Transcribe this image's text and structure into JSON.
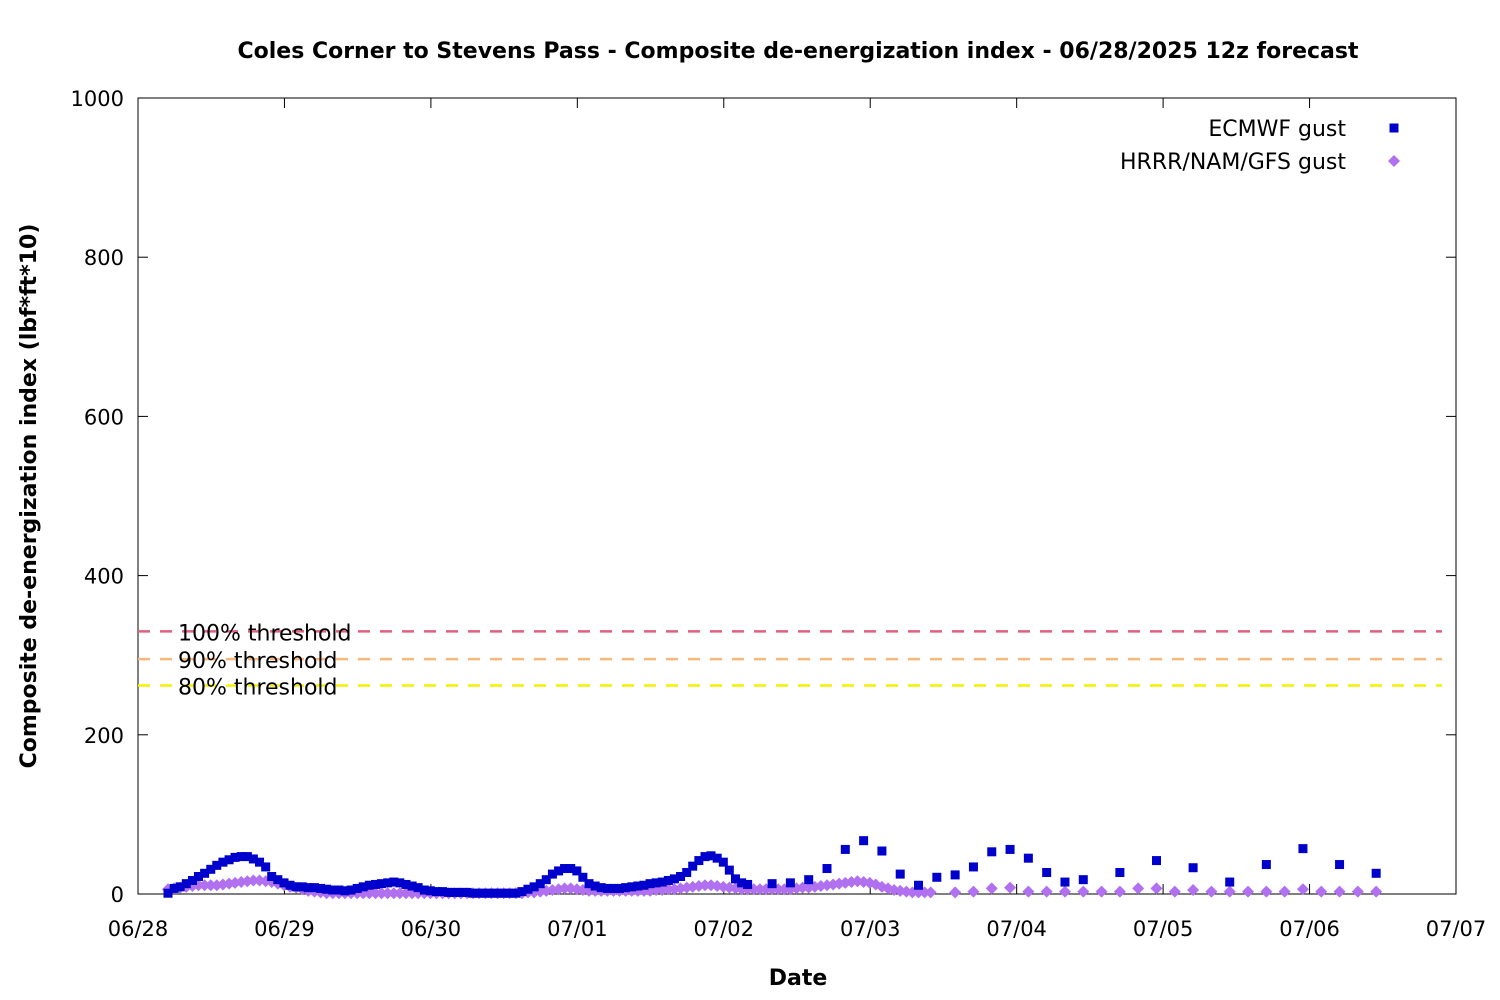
{
  "chart_data": {
    "type": "scatter",
    "title": "Coles Corner to Stevens Pass - Composite de-energization index - 06/28/2025 12z forecast",
    "xlabel": "Date",
    "ylabel": "Composite de-energization index (lbf*ft*10)",
    "x_unit": "days since 06/28 00z",
    "xlim": [
      0,
      9
    ],
    "ylim": [
      0,
      1000
    ],
    "x_ticks": [
      {
        "x": 0,
        "label": "06/28"
      },
      {
        "x": 1,
        "label": "06/29"
      },
      {
        "x": 2,
        "label": "06/30"
      },
      {
        "x": 3,
        "label": "07/01"
      },
      {
        "x": 4,
        "label": "07/02"
      },
      {
        "x": 5,
        "label": "07/03"
      },
      {
        "x": 6,
        "label": "07/04"
      },
      {
        "x": 7,
        "label": "07/05"
      },
      {
        "x": 8,
        "label": "07/06"
      },
      {
        "x": 9,
        "label": "07/07"
      }
    ],
    "y_ticks": [
      0,
      200,
      400,
      600,
      800,
      1000
    ],
    "grid": false,
    "legend_position": "top-right",
    "thresholds": [
      {
        "name": "100% threshold",
        "value": 330,
        "color": "#e0607e"
      },
      {
        "name": "90% threshold",
        "value": 295,
        "color": "#f7b97b"
      },
      {
        "name": "80% threshold",
        "value": 262,
        "color": "#f2f200"
      }
    ],
    "series": [
      {
        "name": "ECMWF gust",
        "color": "#0000cc",
        "marker": "square",
        "points": [
          [
            0.0,
            1
          ],
          [
            0.042,
            7
          ],
          [
            0.083,
            9
          ],
          [
            0.125,
            13
          ],
          [
            0.167,
            17
          ],
          [
            0.208,
            22
          ],
          [
            0.25,
            26
          ],
          [
            0.292,
            31
          ],
          [
            0.333,
            36
          ],
          [
            0.375,
            40
          ],
          [
            0.417,
            43
          ],
          [
            0.458,
            46
          ],
          [
            0.5,
            47
          ],
          [
            0.542,
            47
          ],
          [
            0.583,
            44
          ],
          [
            0.625,
            40
          ],
          [
            0.667,
            34
          ],
          [
            0.708,
            22
          ],
          [
            0.75,
            18
          ],
          [
            0.792,
            14
          ],
          [
            0.833,
            11
          ],
          [
            0.875,
            9
          ],
          [
            0.917,
            9
          ],
          [
            0.958,
            8
          ],
          [
            1.0,
            8
          ],
          [
            1.042,
            7
          ],
          [
            1.083,
            6
          ],
          [
            1.125,
            5
          ],
          [
            1.167,
            5
          ],
          [
            1.208,
            4
          ],
          [
            1.25,
            5
          ],
          [
            1.292,
            7
          ],
          [
            1.333,
            9
          ],
          [
            1.375,
            11
          ],
          [
            1.417,
            12
          ],
          [
            1.458,
            13
          ],
          [
            1.5,
            14
          ],
          [
            1.542,
            15
          ],
          [
            1.583,
            14
          ],
          [
            1.625,
            12
          ],
          [
            1.667,
            10
          ],
          [
            1.708,
            8
          ],
          [
            1.75,
            5
          ],
          [
            1.792,
            4
          ],
          [
            1.833,
            3
          ],
          [
            1.875,
            3
          ],
          [
            1.917,
            2
          ],
          [
            1.958,
            2
          ],
          [
            2.0,
            2
          ],
          [
            2.042,
            2
          ],
          [
            2.083,
            1
          ],
          [
            2.125,
            1
          ],
          [
            2.167,
            1
          ],
          [
            2.208,
            1
          ],
          [
            2.25,
            1
          ],
          [
            2.292,
            1
          ],
          [
            2.333,
            1
          ],
          [
            2.375,
            1
          ],
          [
            2.417,
            3
          ],
          [
            2.458,
            6
          ],
          [
            2.5,
            9
          ],
          [
            2.542,
            13
          ],
          [
            2.583,
            18
          ],
          [
            2.625,
            25
          ],
          [
            2.667,
            29
          ],
          [
            2.708,
            32
          ],
          [
            2.75,
            32
          ],
          [
            2.792,
            29
          ],
          [
            2.833,
            21
          ],
          [
            2.875,
            13
          ],
          [
            2.917,
            10
          ],
          [
            2.958,
            8
          ],
          [
            3.0,
            7
          ],
          [
            3.042,
            7
          ],
          [
            3.083,
            7
          ],
          [
            3.125,
            8
          ],
          [
            3.167,
            9
          ],
          [
            3.208,
            10
          ],
          [
            3.25,
            11
          ],
          [
            3.292,
            13
          ],
          [
            3.333,
            14
          ],
          [
            3.375,
            15
          ],
          [
            3.417,
            17
          ],
          [
            3.458,
            19
          ],
          [
            3.5,
            22
          ],
          [
            3.542,
            27
          ],
          [
            3.583,
            35
          ],
          [
            3.625,
            42
          ],
          [
            3.667,
            47
          ],
          [
            3.708,
            48
          ],
          [
            3.75,
            45
          ],
          [
            3.792,
            40
          ],
          [
            3.833,
            30
          ],
          [
            3.875,
            19
          ],
          [
            3.917,
            14
          ],
          [
            3.958,
            12
          ],
          [
            4.125,
            13
          ],
          [
            4.25,
            14
          ],
          [
            4.375,
            18
          ],
          [
            4.5,
            32
          ],
          [
            4.625,
            56
          ],
          [
            4.75,
            67
          ],
          [
            4.875,
            54
          ],
          [
            5.0,
            25
          ],
          [
            5.125,
            11
          ],
          [
            5.25,
            21
          ],
          [
            5.375,
            24
          ],
          [
            5.5,
            34
          ],
          [
            5.625,
            53
          ],
          [
            5.75,
            56
          ],
          [
            5.875,
            45
          ],
          [
            6.0,
            27
          ],
          [
            6.125,
            15
          ],
          [
            6.25,
            18
          ],
          [
            6.5,
            27
          ],
          [
            6.75,
            42
          ],
          [
            7.0,
            33
          ],
          [
            7.25,
            15
          ],
          [
            7.5,
            37
          ],
          [
            7.75,
            57
          ],
          [
            8.0,
            37
          ],
          [
            8.25,
            26
          ]
        ]
      },
      {
        "name": "HRRR/NAM/GFS gust",
        "color": "#b070f0",
        "marker": "diamond",
        "points": [
          [
            0.0,
            6
          ],
          [
            0.042,
            7
          ],
          [
            0.083,
            8
          ],
          [
            0.125,
            9
          ],
          [
            0.167,
            10
          ],
          [
            0.208,
            11
          ],
          [
            0.25,
            11
          ],
          [
            0.292,
            11
          ],
          [
            0.333,
            11
          ],
          [
            0.375,
            12
          ],
          [
            0.417,
            13
          ],
          [
            0.458,
            14
          ],
          [
            0.5,
            15
          ],
          [
            0.542,
            16
          ],
          [
            0.583,
            17
          ],
          [
            0.625,
            17
          ],
          [
            0.667,
            16
          ],
          [
            0.708,
            15
          ],
          [
            0.75,
            13
          ],
          [
            0.792,
            11
          ],
          [
            0.833,
            9
          ],
          [
            0.875,
            8
          ],
          [
            0.917,
            6
          ],
          [
            0.958,
            4
          ],
          [
            1.0,
            3
          ],
          [
            1.042,
            2
          ],
          [
            1.083,
            1
          ],
          [
            1.125,
            1
          ],
          [
            1.167,
            1
          ],
          [
            1.208,
            1
          ],
          [
            1.25,
            1
          ],
          [
            1.292,
            1
          ],
          [
            1.333,
            1
          ],
          [
            1.375,
            1
          ],
          [
            1.417,
            1
          ],
          [
            1.458,
            1
          ],
          [
            1.5,
            1
          ],
          [
            1.542,
            1
          ],
          [
            1.583,
            1
          ],
          [
            1.625,
            1
          ],
          [
            1.667,
            1
          ],
          [
            1.708,
            1
          ],
          [
            1.75,
            1
          ],
          [
            1.792,
            1
          ],
          [
            1.833,
            1
          ],
          [
            1.875,
            1
          ],
          [
            1.917,
            1
          ],
          [
            1.958,
            1
          ],
          [
            2.0,
            1
          ],
          [
            2.042,
            1
          ],
          [
            2.083,
            1
          ],
          [
            2.125,
            1
          ],
          [
            2.167,
            1
          ],
          [
            2.208,
            1
          ],
          [
            2.25,
            1
          ],
          [
            2.292,
            1
          ],
          [
            2.333,
            1
          ],
          [
            2.375,
            1
          ],
          [
            2.417,
            1
          ],
          [
            2.458,
            2
          ],
          [
            2.5,
            2
          ],
          [
            2.542,
            3
          ],
          [
            2.583,
            4
          ],
          [
            2.625,
            5
          ],
          [
            2.667,
            6
          ],
          [
            2.708,
            7
          ],
          [
            2.75,
            7
          ],
          [
            2.792,
            6
          ],
          [
            2.833,
            5
          ],
          [
            2.875,
            4
          ],
          [
            2.917,
            4
          ],
          [
            2.958,
            4
          ],
          [
            3.0,
            4
          ],
          [
            3.042,
            4
          ],
          [
            3.083,
            4
          ],
          [
            3.125,
            4
          ],
          [
            3.167,
            4
          ],
          [
            3.208,
            4
          ],
          [
            3.25,
            4
          ],
          [
            3.292,
            4
          ],
          [
            3.333,
            5
          ],
          [
            3.375,
            5
          ],
          [
            3.417,
            6
          ],
          [
            3.458,
            6
          ],
          [
            3.5,
            7
          ],
          [
            3.542,
            8
          ],
          [
            3.583,
            9
          ],
          [
            3.625,
            10
          ],
          [
            3.667,
            11
          ],
          [
            3.708,
            11
          ],
          [
            3.75,
            10
          ],
          [
            3.792,
            9
          ],
          [
            3.833,
            8
          ],
          [
            3.875,
            7
          ],
          [
            3.917,
            6
          ],
          [
            3.958,
            6
          ],
          [
            4.0,
            6
          ],
          [
            4.042,
            6
          ],
          [
            4.083,
            6
          ],
          [
            4.125,
            6
          ],
          [
            4.167,
            6
          ],
          [
            4.208,
            6
          ],
          [
            4.25,
            6
          ],
          [
            4.292,
            7
          ],
          [
            4.333,
            8
          ],
          [
            4.375,
            8
          ],
          [
            4.417,
            9
          ],
          [
            4.458,
            10
          ],
          [
            4.5,
            11
          ],
          [
            4.542,
            12
          ],
          [
            4.583,
            13
          ],
          [
            4.625,
            14
          ],
          [
            4.667,
            15
          ],
          [
            4.708,
            16
          ],
          [
            4.75,
            15
          ],
          [
            4.792,
            14
          ],
          [
            4.833,
            12
          ],
          [
            4.875,
            9
          ],
          [
            4.917,
            7
          ],
          [
            4.958,
            5
          ],
          [
            5.0,
            4
          ],
          [
            5.042,
            3
          ],
          [
            5.083,
            2
          ],
          [
            5.125,
            2
          ],
          [
            5.167,
            2
          ],
          [
            5.208,
            2
          ],
          [
            5.375,
            2
          ],
          [
            5.5,
            3
          ],
          [
            5.625,
            7
          ],
          [
            5.75,
            8
          ],
          [
            5.875,
            3
          ],
          [
            6.0,
            3
          ],
          [
            6.125,
            3
          ],
          [
            6.25,
            3
          ],
          [
            6.375,
            3
          ],
          [
            6.5,
            3
          ],
          [
            6.625,
            7
          ],
          [
            6.75,
            7
          ],
          [
            6.875,
            3
          ],
          [
            7.0,
            5
          ],
          [
            7.125,
            3
          ],
          [
            7.25,
            3
          ],
          [
            7.375,
            3
          ],
          [
            7.5,
            3
          ],
          [
            7.625,
            3
          ],
          [
            7.75,
            6
          ],
          [
            7.875,
            3
          ],
          [
            8.0,
            3
          ],
          [
            8.125,
            3
          ],
          [
            8.25,
            3
          ]
        ]
      }
    ]
  }
}
